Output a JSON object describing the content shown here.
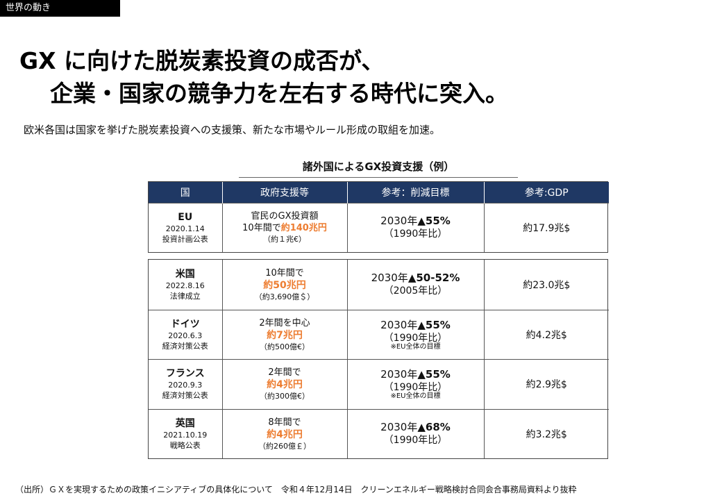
{
  "section_tag": "世界の動き",
  "title_line1": "GX に向けた脱炭素投資の成否が、",
  "title_line2": "企業・国家の競争力を左右する時代に突入。",
  "subtitle": "欧米各国は国家を挙げた脱炭素投資への支援策、新たな市場やルール形成の取組を加速。",
  "table": {
    "title": "諸外国によるGX投資支援（例）",
    "headers": [
      "国",
      "政府支援等",
      "参考：削減目標",
      "参考:GDP"
    ],
    "rows": [
      {
        "country": "EU",
        "date": "2020.1.14",
        "label": "投資計画公表",
        "support_line1": "官民のGX投資額",
        "support_pre": "10年間で",
        "support_amount": "約140兆円",
        "support_note": "（約１兆€）",
        "target_year": "2030年",
        "target_value": "▲55%",
        "target_base": "（1990年比）",
        "target_note": "",
        "gdp": "約17.9兆$"
      },
      {
        "country": "米国",
        "date": "2022.8.16",
        "label": "法律成立",
        "support_line1": "10年間で",
        "support_pre": "",
        "support_amount": "約50兆円",
        "support_note": "（約3,690億＄）",
        "target_year": "2030年",
        "target_value": "▲50-52%",
        "target_base": "（2005年比）",
        "target_note": "",
        "gdp": "約23.0兆$"
      },
      {
        "country": "ドイツ",
        "date": "2020.6.3",
        "label": "経済対策公表",
        "support_line1": "2年間を中心",
        "support_pre": "",
        "support_amount": "約7兆円",
        "support_note": "（約500億€）",
        "target_year": "2030年",
        "target_value": "▲55%",
        "target_base": "（1990年比）",
        "target_note": "※EU全体の目標",
        "gdp": "約4.2兆$"
      },
      {
        "country": "フランス",
        "date": "2020.9.3",
        "label": "経済対策公表",
        "support_line1": "2年間で",
        "support_pre": "",
        "support_amount": "約4兆円",
        "support_note": "（約300億€）",
        "target_year": "2030年",
        "target_value": "▲55%",
        "target_base": "（1990年比）",
        "target_note": "※EU全体の目標",
        "gdp": "約2.9兆$"
      },
      {
        "country": "英国",
        "date": "2021.10.19",
        "label": "戦略公表",
        "support_line1": "8年間で",
        "support_pre": "",
        "support_amount": "約4兆円",
        "support_note": "（約260億￡）",
        "target_year": "2030年",
        "target_value": "▲68%",
        "target_base": "（1990年比）",
        "target_note": "",
        "gdp": "約3.2兆$"
      }
    ]
  },
  "source": "（出所）ＧＸを実現するための政策イニシアティブの具体化について　令和４年12月14日　クリーンエネルギー戦略検討合同会合事務局資料より抜粋",
  "colors": {
    "header_bg": "#1f3864",
    "highlight": "#ed7d31"
  }
}
